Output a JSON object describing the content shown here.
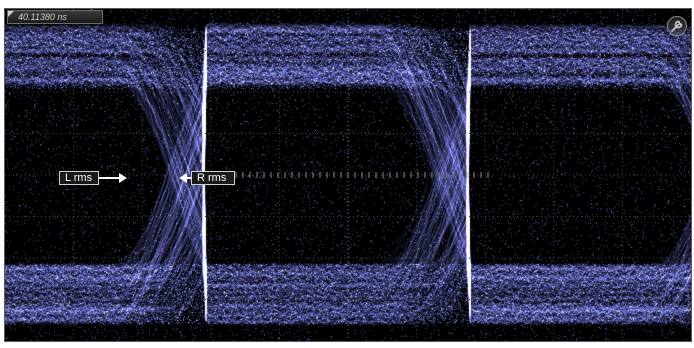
{
  "scope": {
    "time_readout": "40.11380 ns",
    "settings_icon": "wrench-icon",
    "trace_color": "#8f95ff",
    "background_color": "#000000"
  },
  "markers": {
    "left_label": "L rms",
    "right_label": "R rms"
  }
}
